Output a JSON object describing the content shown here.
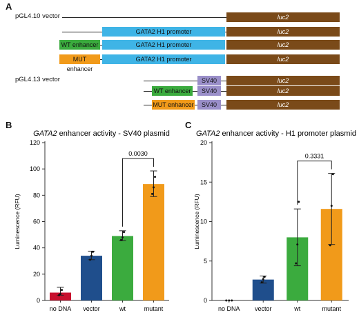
{
  "panels": {
    "a": "A",
    "b": "B",
    "c": "C"
  },
  "constructs": {
    "pgl410_label": "pGL4.10 vector",
    "pgl413_label": "pGL4.13 vector",
    "luc2": "luc2",
    "h1_promoter": "GATA2 H1 promoter",
    "wt_enhancer": "WT enhancer",
    "mut_enhancer": "MUT enhancer",
    "sv40": "SV40"
  },
  "colors": {
    "luc2": "#7a4a19",
    "promoter": "#3fb4e6",
    "wt": "#3bab3e",
    "mutant": "#f19a1a",
    "sv40": "#9a8fc9",
    "no_dna": "#c8102e",
    "vector": "#1f4e8c"
  },
  "chart_data": [
    {
      "type": "bar",
      "title_gene": "GATA2",
      "title_rest": " enhancer activity - SV40 plasmid",
      "ylabel": "Luminescence (RFU)",
      "xlabel": "",
      "ylim": [
        0,
        120
      ],
      "yticks": [
        "0",
        "20",
        "40",
        "60",
        "80",
        "100",
        "120"
      ],
      "categories": [
        "no DNA",
        "vector",
        "wt",
        "mutant"
      ],
      "values": [
        6,
        34,
        49,
        88.5
      ],
      "errors": [
        [
          4,
          10
        ],
        [
          31,
          37.5
        ],
        [
          45.5,
          53
        ],
        [
          79,
          98.5
        ]
      ],
      "points": [
        [
          4,
          5,
          8
        ],
        [
          31,
          34,
          37
        ],
        [
          46,
          48,
          52
        ],
        [
          81,
          86,
          94
        ]
      ],
      "colors": [
        "#c8102e",
        "#1f4e8c",
        "#3bab3e",
        "#f19a1a"
      ],
      "comparison": {
        "from": 2,
        "to": 3,
        "label": "0.0030"
      }
    },
    {
      "type": "bar",
      "title_gene": "GATA2",
      "title_rest": " enhancer activity - H1 promoter plasmid",
      "ylabel": "Luminescence (RFU)",
      "xlabel": "",
      "ylim": [
        0,
        20
      ],
      "yticks": [
        "0",
        "5",
        "10",
        "15",
        "20"
      ],
      "categories": [
        "no DNA",
        "vector",
        "wt",
        "mutant"
      ],
      "values": [
        0,
        2.65,
        8,
        11.6
      ],
      "errors": [
        [
          0,
          0
        ],
        [
          2.2,
          3.1
        ],
        [
          4.4,
          11.6
        ],
        [
          7.1,
          16.1
        ]
      ],
      "points": [
        [
          0,
          0,
          0
        ],
        [
          2.3,
          2.7,
          3.0
        ],
        [
          4.7,
          7.1,
          12.5
        ],
        [
          7.0,
          12.0,
          16.0
        ]
      ],
      "colors": [
        "#c8102e",
        "#1f4e8c",
        "#3bab3e",
        "#f19a1a"
      ],
      "comparison": {
        "from": 2,
        "to": 3,
        "label": "0.3331"
      }
    }
  ]
}
